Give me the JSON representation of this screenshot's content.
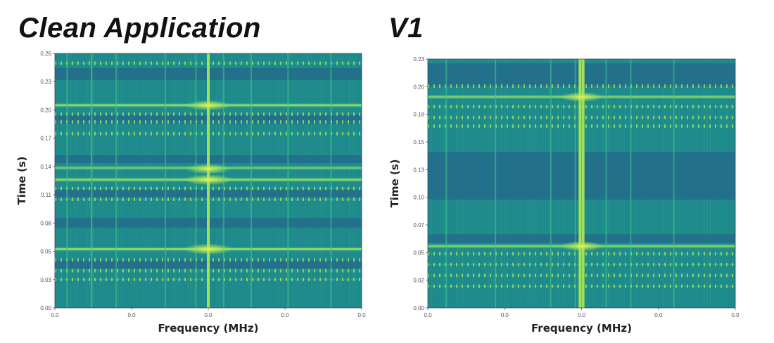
{
  "colors": {
    "background": "#1f8a8c",
    "band_dark": "#236b8a",
    "line_light": "#3ec18a",
    "line_bright": "#a8e65a",
    "hot": "#f2f04a"
  },
  "chart_data": [
    {
      "type": "heatmap",
      "title": "Clean Application",
      "xlabel": "Frequency (MHz)",
      "ylabel": "Time (s)",
      "xlim": [
        0.0,
        1.0
      ],
      "ylim": [
        0.0,
        0.26
      ],
      "x_ticks": [
        "0.0",
        "0.0",
        "0.0",
        "0.0",
        "0.0"
      ],
      "y_ticks": [
        "0.26",
        "0.23",
        "0.20",
        "0.17",
        "0.14",
        "0.11",
        "0.08",
        "0.05",
        "0.03",
        "0.00"
      ],
      "vertical_lines": [
        {
          "x": 0.04,
          "strength": 0.5
        },
        {
          "x": 0.12,
          "strength": 0.8
        },
        {
          "x": 0.2,
          "strength": 0.4
        },
        {
          "x": 0.36,
          "strength": 0.4
        },
        {
          "x": 0.46,
          "strength": 0.4
        },
        {
          "x": 0.5,
          "strength": 1.0
        },
        {
          "x": 0.55,
          "strength": 0.4
        },
        {
          "x": 0.64,
          "strength": 0.4
        },
        {
          "x": 0.76,
          "strength": 0.4
        },
        {
          "x": 0.9,
          "strength": 0.4
        }
      ],
      "dark_bands": [
        {
          "y": 0.233,
          "h": 0.012
        },
        {
          "y": 0.188,
          "h": 0.01
        },
        {
          "y": 0.148,
          "h": 0.008
        },
        {
          "y": 0.113,
          "h": 0.008
        },
        {
          "y": 0.082,
          "h": 0.01
        },
        {
          "y": 0.04,
          "h": 0.01
        }
      ],
      "bright_rows": [
        {
          "y": 0.207,
          "strength": 0.8
        },
        {
          "y": 0.143,
          "strength": 0.6
        },
        {
          "y": 0.131,
          "strength": 0.8
        },
        {
          "y": 0.06,
          "strength": 0.8
        }
      ],
      "dotted_rows": [
        0.25,
        0.198,
        0.19,
        0.178,
        0.122,
        0.111,
        0.049,
        0.038,
        0.029
      ],
      "hot_spots": [
        {
          "x": 0.5,
          "y": 0.207,
          "r": 0.7
        },
        {
          "x": 0.5,
          "y": 0.142,
          "r": 0.7
        },
        {
          "x": 0.5,
          "y": 0.131,
          "r": 0.9
        },
        {
          "x": 0.5,
          "y": 0.06,
          "r": 1.0
        }
      ]
    },
    {
      "type": "heatmap",
      "title": "V1",
      "xlabel": "Frequency (MHz)",
      "ylabel": "Time (s)",
      "xlim": [
        0.0,
        1.0
      ],
      "ylim": [
        0.0,
        0.23
      ],
      "x_ticks": [
        "0.0",
        "0.0",
        "0.0",
        "0.0",
        "0.0"
      ],
      "y_ticks": [
        "0.23",
        "0.20",
        "0.18",
        "0.15",
        "0.13",
        "0.10",
        "0.07",
        "0.05",
        "0.02",
        "0.00"
      ],
      "vertical_lines": [
        {
          "x": 0.06,
          "strength": 0.4
        },
        {
          "x": 0.22,
          "strength": 0.5
        },
        {
          "x": 0.4,
          "strength": 0.4
        },
        {
          "x": 0.48,
          "strength": 0.4
        },
        {
          "x": 0.495,
          "strength": 1.0
        },
        {
          "x": 0.505,
          "strength": 1.0
        },
        {
          "x": 0.58,
          "strength": 0.4
        },
        {
          "x": 0.66,
          "strength": 0.4
        },
        {
          "x": 0.8,
          "strength": 0.4
        }
      ],
      "dark_bands": [
        {
          "y": 0.204,
          "h": 0.022
        },
        {
          "y": 0.1,
          "h": 0.044
        },
        {
          "y": 0.06,
          "h": 0.008
        }
      ],
      "bright_rows": [
        {
          "y": 0.195,
          "strength": 0.7
        },
        {
          "y": 0.057,
          "strength": 0.7
        }
      ],
      "dotted_rows": [
        0.205,
        0.186,
        0.176,
        0.168,
        0.05,
        0.04,
        0.03,
        0.02
      ],
      "hot_spots": [
        {
          "x": 0.5,
          "y": 0.195,
          "r": 0.6
        },
        {
          "x": 0.5,
          "y": 0.057,
          "r": 0.6
        }
      ]
    }
  ]
}
